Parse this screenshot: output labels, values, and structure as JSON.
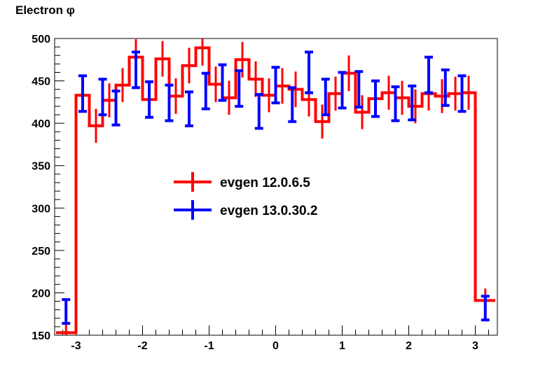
{
  "chart_data": {
    "type": "histogram",
    "title": "Electron φ",
    "xlabel": "",
    "ylabel": "",
    "xlim": [
      -3.3,
      3.3
    ],
    "ylim": [
      150,
      500
    ],
    "x_ticks": [
      -3,
      -2,
      -1,
      0,
      1,
      2,
      3
    ],
    "x_tick_labels": [
      "-3",
      "-2",
      "-1",
      "0",
      "1",
      "2",
      "3"
    ],
    "y_ticks": [
      150,
      200,
      250,
      300,
      350,
      400,
      450,
      500
    ],
    "y_tick_labels": [
      "150",
      "200",
      "250",
      "300",
      "350",
      "400",
      "450",
      "500"
    ],
    "bin_edges": [
      -3.3,
      -3.0,
      -2.8,
      -2.6,
      -2.4,
      -2.2,
      -2.0,
      -1.8,
      -1.6,
      -1.4,
      -1.2,
      -1.0,
      -0.8,
      -0.6,
      -0.4,
      -0.2,
      0.0,
      0.2,
      0.4,
      0.6,
      0.8,
      1.0,
      1.2,
      1.4,
      1.6,
      1.8,
      2.0,
      2.2,
      2.4,
      2.6,
      2.8,
      3.0,
      3.3
    ],
    "series": [
      {
        "name": "evgen 12.0.6.5",
        "color": "#ff0000",
        "style": "step-histogram",
        "values": [
          153,
          433,
          397,
          427,
          445,
          478,
          428,
          476,
          432,
          468,
          489,
          446,
          430,
          475,
          452,
          433,
          444,
          440,
          428,
          402,
          435,
          459,
          413,
          429,
          436,
          430,
          420,
          435,
          432,
          435,
          436,
          191
        ],
        "errors": [
          10,
          10,
          20,
          20,
          20,
          21,
          21,
          21,
          21,
          21,
          21,
          21,
          20,
          21,
          21,
          20,
          21,
          21,
          20,
          20,
          20,
          21,
          20,
          20,
          20,
          20,
          20,
          20,
          20,
          20,
          20,
          14
        ]
      },
      {
        "name": "evgen 13.0.30.2",
        "color": "#0000ff",
        "style": "error-bars",
        "x": [
          -3.15,
          -2.9,
          -2.6,
          -2.4,
          -2.1,
          -1.9,
          -1.6,
          -1.3,
          -1.05,
          -0.8,
          -0.55,
          -0.25,
          0.0,
          0.25,
          0.5,
          0.75,
          1.0,
          1.25,
          1.5,
          1.8,
          2.05,
          2.3,
          2.55,
          2.8,
          3.15
        ],
        "values": [
          178,
          435,
          431,
          418,
          463,
          428,
          424,
          417,
          438,
          448,
          441,
          414,
          445,
          422,
          460,
          431,
          439,
          440,
          429,
          423,
          424,
          457,
          442,
          435,
          182
        ],
        "errors": [
          14,
          21,
          21,
          20,
          21,
          21,
          21,
          20,
          21,
          21,
          21,
          20,
          21,
          20,
          24,
          21,
          21,
          21,
          21,
          20,
          20,
          21,
          21,
          21,
          14
        ]
      }
    ],
    "legend_position": "center-left",
    "grid": false
  }
}
